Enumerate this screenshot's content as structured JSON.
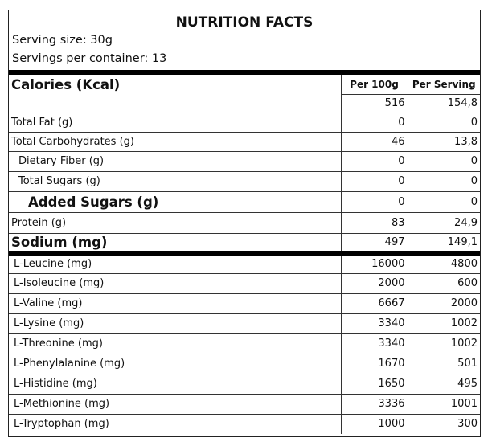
{
  "header": {
    "title": "NUTRITION FACTS",
    "serving_size": "Serving size: 30g",
    "servings_per_container": "Servings per container: 13"
  },
  "table": {
    "columns": [
      "Calories (Kcal)",
      "Per 100g",
      "Per Serving"
    ],
    "calories": [
      "516",
      "154,8"
    ],
    "rows": [
      [
        "Total Fat (g)",
        "0",
        "0"
      ],
      [
        "Total Carbohydrates (g)",
        "46",
        "13,8"
      ],
      [
        "Dietary Fiber (g)",
        "0",
        "0"
      ],
      [
        "Total Sugars (g)",
        "0",
        "0"
      ],
      [
        "Added Sugars (g)",
        "0",
        "0"
      ],
      [
        "Protein (g)",
        "83",
        "24,9"
      ],
      [
        "Sodium (mg)",
        "497",
        "149,1"
      ]
    ],
    "amino_acids": [
      [
        "L-Leucine (mg)",
        "16000",
        "4800"
      ],
      [
        "L-Isoleucine (mg)",
        "2000",
        "600"
      ],
      [
        "L-Valine (mg)",
        "6667",
        "2000"
      ],
      [
        "L-Lysine (mg)",
        "3340",
        "1002"
      ],
      [
        "L-Threonine (mg)",
        "3340",
        "1002"
      ],
      [
        "L-Phenylalanine (mg)",
        "1670",
        "501"
      ],
      [
        "L-Histidine (mg)",
        "1650",
        "495"
      ],
      [
        "L-Methionine (mg)",
        "3336",
        "1001"
      ],
      [
        "L-Tryptophan (mg)",
        "1000",
        "300"
      ]
    ]
  }
}
